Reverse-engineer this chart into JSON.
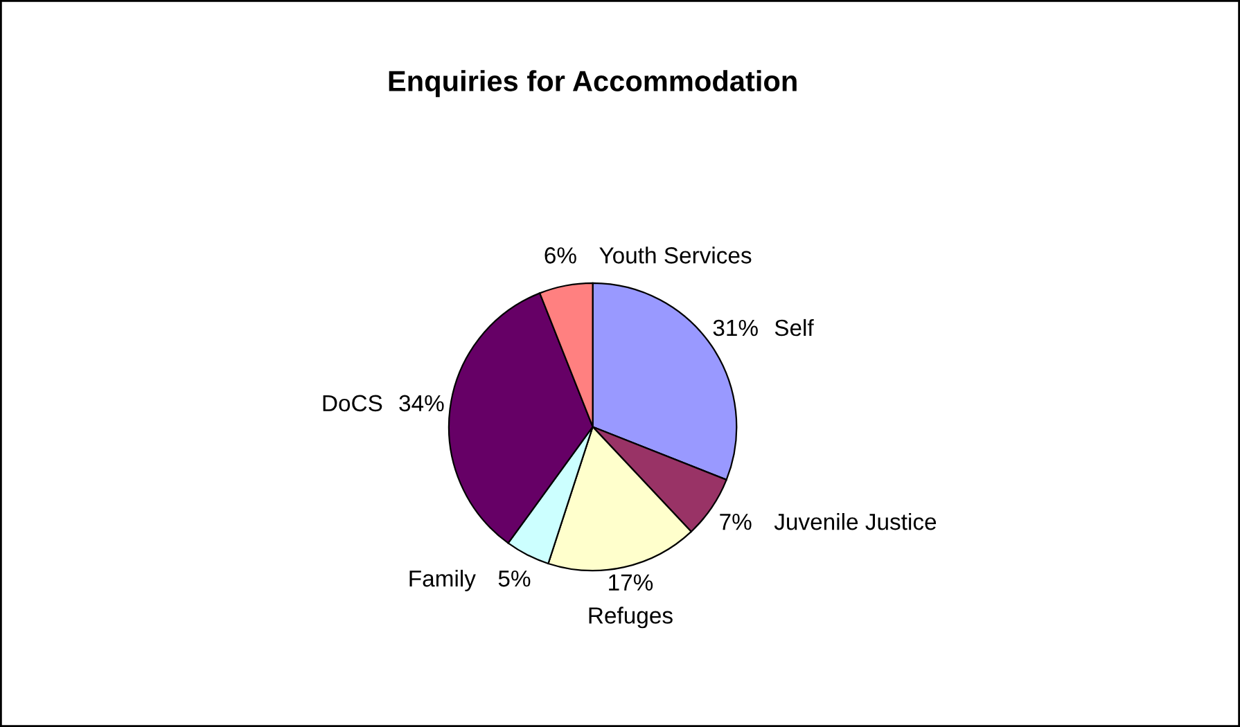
{
  "chart_data": {
    "type": "pie",
    "title": "Enquiries for Accommodation",
    "categories": [
      "Self",
      "Juvenile Justice",
      "Refuges",
      "Family",
      "DoCS",
      "Youth Services"
    ],
    "values": [
      31,
      7,
      17,
      5,
      34,
      6
    ],
    "colors": [
      "#9999ff",
      "#993366",
      "#ffffcc",
      "#ccffff",
      "#660066",
      "#ff8080"
    ],
    "value_labels": [
      "31%",
      "7%",
      "17%",
      "5%",
      "34%",
      "6%"
    ],
    "legend": false
  }
}
